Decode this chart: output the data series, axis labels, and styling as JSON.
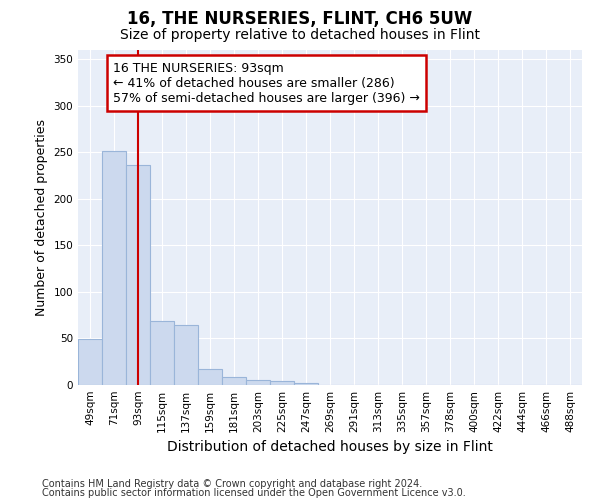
{
  "title": "16, THE NURSERIES, FLINT, CH6 5UW",
  "subtitle": "Size of property relative to detached houses in Flint",
  "xlabel": "Distribution of detached houses by size in Flint",
  "ylabel": "Number of detached properties",
  "footer_line1": "Contains HM Land Registry data © Crown copyright and database right 2024.",
  "footer_line2": "Contains public sector information licensed under the Open Government Licence v3.0.",
  "categories": [
    "49sqm",
    "71sqm",
    "93sqm",
    "115sqm",
    "137sqm",
    "159sqm",
    "181sqm",
    "203sqm",
    "225sqm",
    "247sqm",
    "269sqm",
    "291sqm",
    "313sqm",
    "335sqm",
    "357sqm",
    "378sqm",
    "400sqm",
    "422sqm",
    "444sqm",
    "466sqm",
    "488sqm"
  ],
  "values": [
    49,
    252,
    236,
    69,
    64,
    17,
    9,
    5,
    4,
    2,
    0,
    0,
    0,
    0,
    0,
    0,
    0,
    0,
    0,
    0,
    0
  ],
  "bar_color": "#ccd9ee",
  "bar_edge_color": "#9ab5d9",
  "subject_line_color": "#cc0000",
  "annotation_line1": "16 THE NURSERIES: 93sqm",
  "annotation_line2": "← 41% of detached houses are smaller (286)",
  "annotation_line3": "57% of semi-detached houses are larger (396) →",
  "ylim": [
    0,
    360
  ],
  "yticks": [
    0,
    50,
    100,
    150,
    200,
    250,
    300,
    350
  ],
  "background_color": "#ffffff",
  "plot_bg_color": "#e8eef8",
  "grid_color": "#ffffff",
  "title_fontsize": 12,
  "subtitle_fontsize": 10,
  "tick_fontsize": 7.5,
  "ylabel_fontsize": 9,
  "xlabel_fontsize": 10,
  "annotation_fontsize": 9,
  "footer_fontsize": 7
}
